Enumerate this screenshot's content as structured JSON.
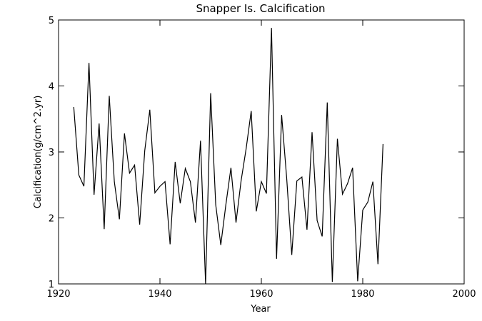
{
  "chart_data": {
    "type": "line",
    "title": "Snapper Is. Calcification",
    "xlabel": "Year",
    "ylabel": "Calcification(g/cm^2.yr)",
    "xlim": [
      1920,
      2000
    ],
    "ylim": [
      1,
      5
    ],
    "xticks": [
      "1920",
      "1940",
      "1960",
      "1980",
      "2000"
    ],
    "yticks": [
      "1",
      "2",
      "3",
      "4",
      "5"
    ],
    "grid": false,
    "series": [
      {
        "color": "#000000",
        "x": [
          1923,
          1924,
          1925,
          1926,
          1927,
          1928,
          1929,
          1930,
          1931,
          1932,
          1933,
          1934,
          1935,
          1936,
          1937,
          1938,
          1939,
          1940,
          1941,
          1942,
          1943,
          1944,
          1945,
          1946,
          1947,
          1948,
          1949,
          1950,
          1951,
          1952,
          1953,
          1954,
          1955,
          1956,
          1957,
          1958,
          1959,
          1960,
          1961,
          1962,
          1963,
          1964,
          1965,
          1966,
          1967,
          1968,
          1969,
          1970,
          1971,
          1972,
          1973,
          1974,
          1975,
          1976,
          1977,
          1978,
          1979,
          1980,
          1981,
          1982,
          1983,
          1984
        ],
        "y": [
          3.68,
          2.65,
          2.48,
          4.35,
          2.35,
          3.43,
          1.83,
          3.85,
          2.55,
          1.98,
          3.28,
          2.68,
          2.8,
          1.9,
          3.02,
          3.64,
          2.38,
          2.48,
          2.55,
          1.6,
          2.85,
          2.22,
          2.75,
          2.55,
          1.93,
          3.17,
          1.0,
          3.89,
          2.2,
          1.59,
          2.2,
          2.76,
          1.93,
          2.56,
          3.05,
          3.62,
          2.1,
          2.55,
          2.37,
          4.88,
          1.38,
          3.56,
          2.6,
          1.44,
          2.56,
          2.62,
          1.82,
          3.3,
          1.96,
          1.72,
          3.75,
          1.03,
          3.2,
          2.36,
          2.52,
          2.76,
          1.04,
          2.12,
          2.24,
          2.55,
          1.3,
          3.12
        ]
      }
    ]
  }
}
